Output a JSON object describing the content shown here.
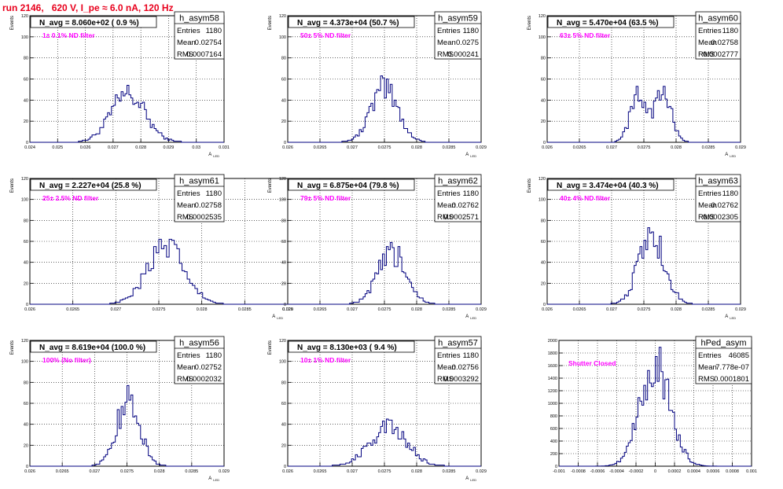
{
  "page": {
    "title": "run 2146,   620 V, I_pe ≈ 6.0 nA, 120 Hz",
    "title_color": "#e8001c",
    "histogram_line_color": "#00007f",
    "annotation_color": "#ff00ff"
  },
  "chart_data": [
    {
      "type": "histogram",
      "name": "h_asym58",
      "ylabel": "Events",
      "xlabel": "A LED",
      "xlim": [
        0.024,
        0.031
      ],
      "ylim": [
        0,
        120
      ],
      "xticks": [
        "0.024",
        "0.025",
        "0.026",
        "0.027",
        "0.028",
        "0.029",
        "0.03",
        "0.031"
      ],
      "yticks": [
        "0",
        "20",
        "40",
        "60",
        "80",
        "100",
        "120"
      ],
      "grid": true,
      "stats": {
        "Entries": "1180",
        "Mean": "0.02754",
        "RMS": "0.0007164"
      },
      "n_avg_label": "N_avg = 8.060e+02 ( 0.9 %)",
      "annotation": "1± 0.1% ND filter",
      "peak_value": 54
    },
    {
      "type": "histogram",
      "name": "h_asym59",
      "ylabel": "Events",
      "xlabel": "A LED",
      "xlim": [
        0.026,
        0.029
      ],
      "ylim": [
        0,
        120
      ],
      "xticks": [
        "0.026",
        "0.0265",
        "0.027",
        "0.0275",
        "0.028",
        "0.0285",
        "0.029"
      ],
      "yticks": [
        "0",
        "20",
        "40",
        "60",
        "80",
        "100",
        "120"
      ],
      "grid": true,
      "stats": {
        "Entries": "1180",
        "Mean": "0.0275",
        "RMS": "0.000241"
      },
      "n_avg_label": "N_avg = 4.373e+04 (50.7 %)",
      "annotation": "50± 5% ND filter",
      "peak_value": 63
    },
    {
      "type": "histogram",
      "name": "h_asym60",
      "ylabel": "Events",
      "xlabel": "A LED",
      "xlim": [
        0.026,
        0.029
      ],
      "ylim": [
        0,
        120
      ],
      "xticks": [
        "0.026",
        "0.0265",
        "0.027",
        "0.0275",
        "0.028",
        "0.0285",
        "0.029"
      ],
      "yticks": [
        "0",
        "20",
        "40",
        "60",
        "80",
        "100",
        "120"
      ],
      "grid": true,
      "stats": {
        "Entries": "1180",
        "Mean": "0.02758",
        "RMS": "0.0002777"
      },
      "n_avg_label": "N_avg = 5.470e+04 (63.5 %)",
      "annotation": "63± 5% ND filter",
      "peak_value": 53
    },
    {
      "type": "histogram",
      "name": "h_asym61",
      "ylabel": "Events",
      "xlabel": "A LED",
      "xlim": [
        0.026,
        0.029
      ],
      "ylim": [
        0,
        120
      ],
      "xticks": [
        "0.026",
        "0.0265",
        "0.027",
        "0.0275",
        "0.028",
        "0.0285",
        "0.029"
      ],
      "yticks": [
        "0",
        "20",
        "40",
        "60",
        "80",
        "100",
        "120"
      ],
      "grid": true,
      "stats": {
        "Entries": "1180",
        "Mean": "0.02758",
        "RMS": "0.0002535"
      },
      "n_avg_label": "N_avg = 2.227e+04 (25.8 %)",
      "annotation": "25± 2.5% ND filter",
      "peak_value": 62
    },
    {
      "type": "histogram",
      "name": "h_asym62",
      "ylabel": "Events",
      "xlabel": "A LED",
      "xlim": [
        0.026,
        0.029
      ],
      "ylim": [
        0,
        120
      ],
      "xticks": [
        "0.026",
        "0.0265",
        "0.027",
        "0.0275",
        "0.028",
        "0.0285",
        "0.029"
      ],
      "yticks": [
        "0",
        "20",
        "40",
        "60",
        "80",
        "100",
        "120"
      ],
      "grid": true,
      "stats": {
        "Entries": "1180",
        "Mean": "0.02762",
        "RMS": "0.0002571"
      },
      "n_avg_label": "N_avg = 6.875e+04 (79.8 %)",
      "annotation": "79± 5% ND filter",
      "peak_value": 59
    },
    {
      "type": "histogram",
      "name": "h_asym63",
      "ylabel": "Events",
      "xlabel": "A LED",
      "xlim": [
        0.026,
        0.029
      ],
      "ylim": [
        0,
        120
      ],
      "xticks": [
        "0.026",
        "0.0265",
        "0.027",
        "0.0275",
        "0.028",
        "0.0285",
        "0.029"
      ],
      "yticks": [
        "0",
        "20",
        "40",
        "60",
        "80",
        "100",
        "120"
      ],
      "grid": true,
      "stats": {
        "Entries": "1180",
        "Mean": "0.02762",
        "RMS": "0.0002305"
      },
      "n_avg_label": "N_avg = 3.474e+04 (40.3 %)",
      "annotation": "40± 4% ND filter",
      "peak_value": 73
    },
    {
      "type": "histogram",
      "name": "h_asym56",
      "ylabel": "Events",
      "xlabel": "A LED",
      "xlim": [
        0.026,
        0.029
      ],
      "ylim": [
        0,
        120
      ],
      "xticks": [
        "0.026",
        "0.0265",
        "0.027",
        "0.0275",
        "0.028",
        "0.0285",
        "0.029"
      ],
      "yticks": [
        "0",
        "20",
        "40",
        "60",
        "80",
        "100",
        "120"
      ],
      "grid": true,
      "stats": {
        "Entries": "1180",
        "Mean": "0.02752",
        "RMS": "0.0002032"
      },
      "n_avg_label": "N_avg = 8.619e+04 (100.0 %)",
      "annotation": "100% (No filter)",
      "peak_value": 77
    },
    {
      "type": "histogram",
      "name": "h_asym57",
      "ylabel": "Events",
      "xlabel": "A LED",
      "xlim": [
        0.026,
        0.029
      ],
      "ylim": [
        0,
        120
      ],
      "xticks": [
        "0.026",
        "0.0265",
        "0.027",
        "0.0275",
        "0.028",
        "0.0285",
        "0.029"
      ],
      "yticks": [
        "0",
        "20",
        "40",
        "60",
        "80",
        "100",
        "120"
      ],
      "grid": true,
      "stats": {
        "Entries": "1180",
        "Mean": "0.02756",
        "RMS": "0.0003292"
      },
      "n_avg_label": "N_avg = 8.130e+03 ( 9.4 %)",
      "annotation": "10± 1% ND filter",
      "peak_value": 45
    },
    {
      "type": "histogram",
      "name": "hPed_asym",
      "ylabel": "",
      "xlabel": "",
      "xlim": [
        -0.001,
        0.001
      ],
      "ylim": [
        0,
        2200
      ],
      "xticks": [
        "-0.001",
        "-0.0008",
        "-0.0006",
        "-0.0004",
        "-0.0002",
        "0",
        "0.0002",
        "0.0004",
        "0.0006",
        "0.0008",
        "0.001"
      ],
      "yticks": [
        "0",
        "200",
        "400",
        "600",
        "800",
        "1000",
        "1200",
        "1400",
        "1600",
        "1800",
        "2000"
      ],
      "grid": true,
      "stats": {
        "Entries": "46085",
        "Mean": "7.778e-07",
        "RMS": "0.0001801"
      },
      "n_avg_label": "",
      "annotation": "Shutter Closed",
      "peak_value": 2080
    }
  ]
}
